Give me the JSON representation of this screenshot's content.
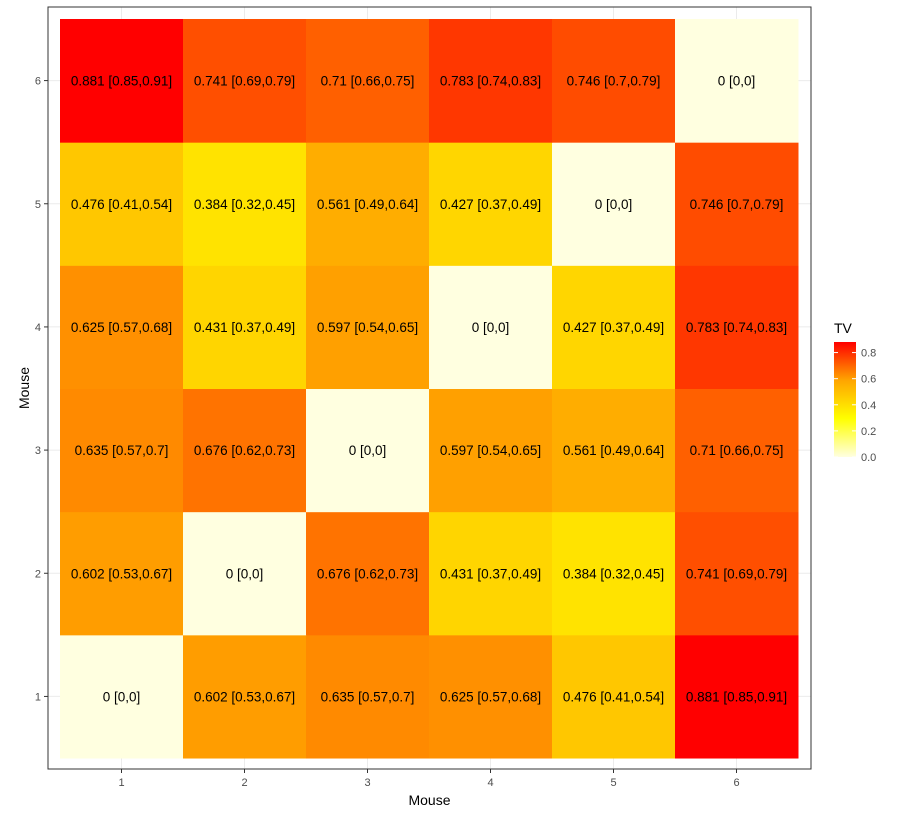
{
  "chart_data": {
    "type": "heatmap",
    "xlabel": "Mouse",
    "ylabel": "Mouse",
    "x_categories": [
      "1",
      "2",
      "3",
      "4",
      "5",
      "6"
    ],
    "y_categories": [
      "1",
      "2",
      "3",
      "4",
      "5",
      "6"
    ],
    "grid": true,
    "legend": {
      "title": "TV",
      "placement": "right",
      "ticks": [
        "0.0",
        "0.2",
        "0.4",
        "0.6",
        "0.8"
      ],
      "range": [
        0,
        0.881
      ],
      "colors": [
        "#ffffe0",
        "#ffff00",
        "#ffa500",
        "#ff0000"
      ]
    },
    "cells": [
      {
        "x": "1",
        "y": "1",
        "value": 0,
        "label": "0 [0,0]"
      },
      {
        "x": "2",
        "y": "1",
        "value": 0.602,
        "label": "0.602 [0.53,0.67]"
      },
      {
        "x": "3",
        "y": "1",
        "value": 0.635,
        "label": "0.635 [0.57,0.7]"
      },
      {
        "x": "4",
        "y": "1",
        "value": 0.625,
        "label": "0.625 [0.57,0.68]"
      },
      {
        "x": "5",
        "y": "1",
        "value": 0.476,
        "label": "0.476 [0.41,0.54]"
      },
      {
        "x": "6",
        "y": "1",
        "value": 0.881,
        "label": "0.881 [0.85,0.91]"
      },
      {
        "x": "1",
        "y": "2",
        "value": 0.602,
        "label": "0.602 [0.53,0.67]"
      },
      {
        "x": "2",
        "y": "2",
        "value": 0,
        "label": "0 [0,0]"
      },
      {
        "x": "3",
        "y": "2",
        "value": 0.676,
        "label": "0.676 [0.62,0.73]"
      },
      {
        "x": "4",
        "y": "2",
        "value": 0.431,
        "label": "0.431 [0.37,0.49]"
      },
      {
        "x": "5",
        "y": "2",
        "value": 0.384,
        "label": "0.384 [0.32,0.45]"
      },
      {
        "x": "6",
        "y": "2",
        "value": 0.741,
        "label": "0.741 [0.69,0.79]"
      },
      {
        "x": "1",
        "y": "3",
        "value": 0.635,
        "label": "0.635 [0.57,0.7]"
      },
      {
        "x": "2",
        "y": "3",
        "value": 0.676,
        "label": "0.676 [0.62,0.73]"
      },
      {
        "x": "3",
        "y": "3",
        "value": 0,
        "label": "0 [0,0]"
      },
      {
        "x": "4",
        "y": "3",
        "value": 0.597,
        "label": "0.597 [0.54,0.65]"
      },
      {
        "x": "5",
        "y": "3",
        "value": 0.561,
        "label": "0.561 [0.49,0.64]"
      },
      {
        "x": "6",
        "y": "3",
        "value": 0.71,
        "label": "0.71 [0.66,0.75]"
      },
      {
        "x": "1",
        "y": "4",
        "value": 0.625,
        "label": "0.625 [0.57,0.68]"
      },
      {
        "x": "2",
        "y": "4",
        "value": 0.431,
        "label": "0.431 [0.37,0.49]"
      },
      {
        "x": "3",
        "y": "4",
        "value": 0.597,
        "label": "0.597 [0.54,0.65]"
      },
      {
        "x": "4",
        "y": "4",
        "value": 0,
        "label": "0 [0,0]"
      },
      {
        "x": "5",
        "y": "4",
        "value": 0.427,
        "label": "0.427 [0.37,0.49]"
      },
      {
        "x": "6",
        "y": "4",
        "value": 0.783,
        "label": "0.783 [0.74,0.83]"
      },
      {
        "x": "1",
        "y": "5",
        "value": 0.476,
        "label": "0.476 [0.41,0.54]"
      },
      {
        "x": "2",
        "y": "5",
        "value": 0.384,
        "label": "0.384 [0.32,0.45]"
      },
      {
        "x": "3",
        "y": "5",
        "value": 0.561,
        "label": "0.561 [0.49,0.64]"
      },
      {
        "x": "4",
        "y": "5",
        "value": 0.427,
        "label": "0.427 [0.37,0.49]"
      },
      {
        "x": "5",
        "y": "5",
        "value": 0,
        "label": "0 [0,0]"
      },
      {
        "x": "6",
        "y": "5",
        "value": 0.746,
        "label": "0.746 [0.7,0.79]"
      },
      {
        "x": "1",
        "y": "6",
        "value": 0.881,
        "label": "0.881 [0.85,0.91]"
      },
      {
        "x": "2",
        "y": "6",
        "value": 0.741,
        "label": "0.741 [0.69,0.79]"
      },
      {
        "x": "3",
        "y": "6",
        "value": 0.71,
        "label": "0.71 [0.66,0.75]"
      },
      {
        "x": "4",
        "y": "6",
        "value": 0.783,
        "label": "0.783 [0.74,0.83]"
      },
      {
        "x": "5",
        "y": "6",
        "value": 0.746,
        "label": "0.746 [0.7,0.79]"
      },
      {
        "x": "6",
        "y": "6",
        "value": 0,
        "label": "0 [0,0]"
      }
    ]
  }
}
